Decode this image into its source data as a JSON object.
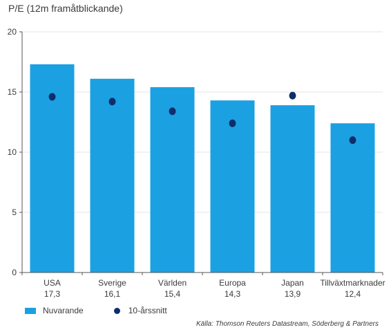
{
  "colors": {
    "bar": "#1ba1e2",
    "dot": "#0f2d6b",
    "grid": "#e5e5e5",
    "axis": "#555555"
  },
  "chart_data": {
    "type": "bar",
    "ylabel": "P/E (12m framåtblickande)",
    "ylim": [
      0,
      20
    ],
    "yticks": [
      "0",
      "5",
      "10",
      "15",
      "20"
    ],
    "grid": true,
    "categories": [
      "USA",
      "Sverige",
      "Världen",
      "Europa",
      "Japan",
      "Tillväxtmarknader"
    ],
    "category_value_labels": [
      "17,3",
      "16,1",
      "15,4",
      "14,3",
      "13,9",
      "12,4"
    ],
    "series": [
      {
        "name": "Nuvarande",
        "kind": "bar",
        "values": [
          17.3,
          16.1,
          15.4,
          14.3,
          13.9,
          12.4
        ]
      },
      {
        "name": "10-årssnitt",
        "kind": "dot",
        "values": [
          14.6,
          14.2,
          13.4,
          12.4,
          14.7,
          11.0
        ]
      }
    ],
    "legend_position": "bottom-left"
  },
  "source_note": "Källa: Thomson Reuters Datastream, Söderberg & Partners"
}
